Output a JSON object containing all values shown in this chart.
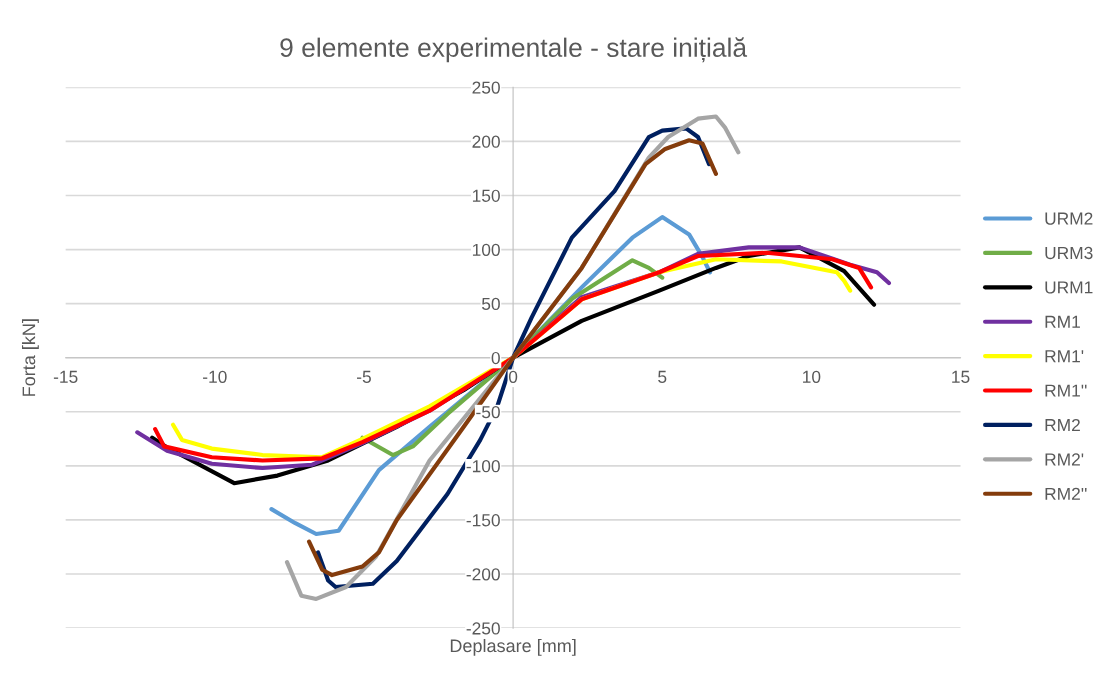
{
  "chart_data": {
    "type": "line",
    "title": "9 elemente experimentale - stare inițială",
    "xlabel": "Deplasare [mm]",
    "ylabel": "Forta [kN]",
    "xlim": [
      -15,
      15
    ],
    "ylim": [
      -250,
      250
    ],
    "xticks": [
      -15,
      -10,
      -5,
      0,
      5,
      10,
      15
    ],
    "yticks": [
      -250,
      -200,
      -150,
      -100,
      -50,
      0,
      50,
      100,
      150,
      200,
      250
    ],
    "grid": "y",
    "legend": "right",
    "marker": "none",
    "line_style": "solid",
    "series": [
      {
        "name": "URM2",
        "color": "#5b9bd5",
        "x": [
          -8.1,
          -7.3,
          -6.6,
          -5.85,
          -4.5,
          -2.8,
          0,
          2.3,
          4.0,
          5.0,
          5.9,
          6.35,
          6.6
        ],
        "values": [
          -140,
          -153,
          -163,
          -160,
          -104,
          -64,
          0,
          65,
          111,
          130,
          114,
          93,
          79
        ]
      },
      {
        "name": "URM3",
        "color": "#70ad47",
        "x": [
          -5.05,
          -4.03,
          -3.36,
          -2.2,
          0,
          2.0,
          4.0,
          4.55,
          5.0
        ],
        "values": [
          -74,
          -90,
          -82,
          -52,
          0,
          55,
          90,
          83,
          74
        ]
      },
      {
        "name": "URM1",
        "color": "#000000",
        "x": [
          -12.1,
          -11.6,
          -9.35,
          -7.9,
          -6.2,
          -3.9,
          -1.66,
          0,
          2.3,
          4.9,
          6.8,
          7.9,
          9.6,
          11.1,
          12.1
        ],
        "values": [
          -74,
          -83,
          -116,
          -109,
          -95,
          -64,
          -30,
          0,
          34,
          62,
          83,
          94,
          102,
          80,
          49
        ]
      },
      {
        "name": "RM1",
        "color": "#7030a0",
        "x": [
          -12.6,
          -11.6,
          -10.1,
          -8.4,
          -6.75,
          -5.05,
          -2.8,
          0,
          2.3,
          4.9,
          6.2,
          7.9,
          9.6,
          11.3,
          12.2,
          12.6
        ],
        "values": [
          -69,
          -86,
          -98,
          -102,
          -99,
          -79,
          -49,
          0,
          56,
          79,
          96,
          102,
          102,
          86,
          79,
          69
        ]
      },
      {
        "name": "RM1'",
        "color": "#ffff00",
        "x": [
          -11.4,
          -11.1,
          -10.1,
          -8.4,
          -6.4,
          -5.05,
          -2.8,
          0,
          2.3,
          4.9,
          6.8,
          9.0,
          10.85,
          11.1,
          11.3
        ],
        "values": [
          -62,
          -76,
          -84,
          -90,
          -92,
          -75,
          -45,
          0,
          54,
          79,
          91,
          89,
          79,
          71,
          62
        ]
      },
      {
        "name": "RM1''",
        "color": "#ff0000",
        "x": [
          -12.0,
          -11.7,
          -10.1,
          -8.4,
          -6.4,
          -5.05,
          -2.8,
          0,
          2.3,
          4.9,
          6.2,
          8.5,
          10.7,
          11.6,
          11.8,
          12.0
        ],
        "values": [
          -66,
          -82,
          -92,
          -95,
          -93,
          -78,
          -49,
          0,
          54,
          79,
          94,
          97,
          91,
          83,
          74,
          65
        ]
      },
      {
        "name": "RM2",
        "color": "#002060",
        "x": [
          -6.54,
          -6.2,
          -5.95,
          -4.7,
          -3.9,
          -2.2,
          -1.1,
          -0.53,
          0,
          0.62,
          1.97,
          3.4,
          4.55,
          5.0,
          5.8,
          6.2,
          6.57
        ],
        "values": [
          -180,
          -206,
          -212,
          -209,
          -188,
          -126,
          -76,
          -45,
          0,
          37,
          111,
          154,
          204,
          210,
          212,
          204,
          179
        ]
      },
      {
        "name": "RM2'",
        "color": "#a5a5a5",
        "x": [
          -7.58,
          -7.1,
          -6.6,
          -5.6,
          -4.6,
          -2.8,
          0,
          2.3,
          4.55,
          5.2,
          6.2,
          6.8,
          7.1,
          7.55
        ],
        "values": [
          -189,
          -220,
          -223,
          -212,
          -184,
          -95,
          0,
          83,
          185,
          204,
          221,
          223,
          213,
          190
        ]
      },
      {
        "name": "RM2''",
        "color": "#843c0c",
        "x": [
          -6.84,
          -6.4,
          -6.07,
          -5.05,
          -4.5,
          -3.9,
          -1.66,
          0,
          2.3,
          4.44,
          5.1,
          5.9,
          6.35,
          6.8
        ],
        "values": [
          -170,
          -196,
          -201,
          -193,
          -180,
          -150,
          -64,
          0,
          83,
          179,
          193,
          201,
          198,
          170
        ]
      }
    ]
  }
}
